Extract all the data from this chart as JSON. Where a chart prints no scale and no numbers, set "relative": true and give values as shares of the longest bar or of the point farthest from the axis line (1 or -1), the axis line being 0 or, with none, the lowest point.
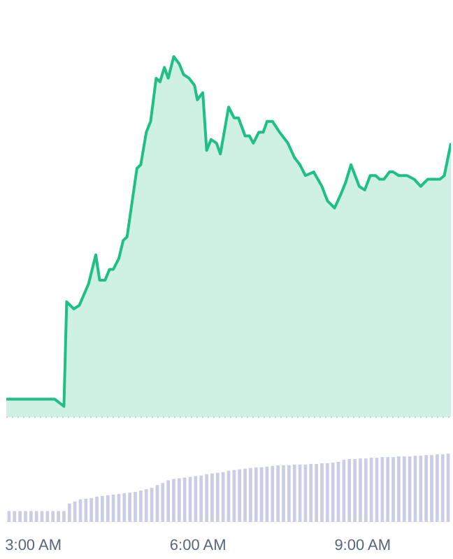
{
  "chart_data": [
    {
      "type": "area",
      "relative": true,
      "color": "#1fbf85",
      "xlim": [
        2.5,
        10.6
      ],
      "x": [
        2.5,
        2.75,
        2.95,
        3.13,
        3.3,
        3.38,
        3.55,
        3.6,
        3.73,
        3.83,
        4.0,
        4.13,
        4.2,
        4.3,
        4.38,
        4.45,
        4.55,
        4.63,
        4.7,
        4.88,
        4.95,
        5.05,
        5.13,
        5.23,
        5.3,
        5.38,
        5.45,
        5.55,
        5.65,
        5.73,
        5.83,
        5.93,
        5.98,
        6.08,
        6.15,
        6.23,
        6.33,
        6.4,
        6.55,
        6.65,
        6.73,
        6.85,
        6.93,
        7.0,
        7.1,
        7.18,
        7.25,
        7.35,
        7.48,
        7.63,
        7.75,
        7.85,
        7.95,
        8.1,
        8.25,
        8.35,
        8.48,
        8.6,
        8.68,
        8.78,
        8.93,
        9.03,
        9.13,
        9.23,
        9.3,
        9.38,
        9.48,
        9.55,
        9.65,
        9.8,
        9.93,
        10.05,
        10.18,
        10.3,
        10.4,
        10.48,
        10.6
      ],
      "values": [
        0.05,
        0.05,
        0.05,
        0.05,
        0.05,
        0.05,
        0.03,
        0.32,
        0.3,
        0.31,
        0.37,
        0.45,
        0.38,
        0.38,
        0.41,
        0.41,
        0.44,
        0.49,
        0.5,
        0.69,
        0.7,
        0.79,
        0.82,
        0.94,
        0.93,
        0.97,
        0.94,
        1.0,
        0.98,
        0.95,
        0.94,
        0.92,
        0.88,
        0.9,
        0.74,
        0.77,
        0.76,
        0.73,
        0.86,
        0.83,
        0.83,
        0.78,
        0.78,
        0.76,
        0.79,
        0.79,
        0.82,
        0.82,
        0.79,
        0.76,
        0.72,
        0.7,
        0.67,
        0.68,
        0.64,
        0.6,
        0.58,
        0.62,
        0.65,
        0.7,
        0.64,
        0.63,
        0.67,
        0.67,
        0.66,
        0.66,
        0.68,
        0.68,
        0.67,
        0.67,
        0.66,
        0.64,
        0.66,
        0.66,
        0.66,
        0.67,
        0.76
      ]
    },
    {
      "type": "bar",
      "relative": true,
      "color": "#c9cde6",
      "xlim": [
        2.5,
        10.6
      ],
      "xticks": [
        {
          "value": 3,
          "label": "3:00 AM"
        },
        {
          "value": 6,
          "label": "6:00 AM"
        },
        {
          "value": 9,
          "label": "9:00 AM"
        }
      ],
      "x": [
        2.55,
        2.65,
        2.75,
        2.85,
        2.95,
        3.05,
        3.15,
        3.25,
        3.35,
        3.45,
        3.55,
        3.65,
        3.75,
        3.85,
        3.95,
        4.05,
        4.15,
        4.25,
        4.35,
        4.45,
        4.55,
        4.65,
        4.75,
        4.85,
        4.95,
        5.05,
        5.15,
        5.25,
        5.35,
        5.45,
        5.55,
        5.65,
        5.75,
        5.85,
        5.95,
        6.05,
        6.15,
        6.25,
        6.35,
        6.45,
        6.55,
        6.65,
        6.75,
        6.85,
        6.95,
        7.05,
        7.15,
        7.25,
        7.35,
        7.45,
        7.55,
        7.65,
        7.75,
        7.85,
        7.95,
        8.05,
        8.15,
        8.25,
        8.35,
        8.45,
        8.55,
        8.65,
        8.75,
        8.85,
        8.95,
        9.05,
        9.15,
        9.25,
        9.35,
        9.45,
        9.55,
        9.65,
        9.75,
        9.85,
        9.95,
        10.05,
        10.15,
        10.25,
        10.35,
        10.45,
        10.55
      ],
      "values": [
        0.16,
        0.16,
        0.16,
        0.16,
        0.16,
        0.16,
        0.16,
        0.16,
        0.16,
        0.16,
        0.16,
        0.27,
        0.3,
        0.33,
        0.34,
        0.35,
        0.37,
        0.38,
        0.39,
        0.4,
        0.41,
        0.42,
        0.43,
        0.44,
        0.46,
        0.48,
        0.5,
        0.54,
        0.57,
        0.61,
        0.63,
        0.64,
        0.65,
        0.66,
        0.67,
        0.68,
        0.7,
        0.71,
        0.72,
        0.73,
        0.75,
        0.76,
        0.77,
        0.78,
        0.79,
        0.8,
        0.8,
        0.81,
        0.82,
        0.83,
        0.83,
        0.83,
        0.84,
        0.84,
        0.84,
        0.85,
        0.85,
        0.86,
        0.86,
        0.87,
        0.88,
        0.91,
        0.92,
        0.92,
        0.93,
        0.93,
        0.94,
        0.94,
        0.95,
        0.95,
        0.95,
        0.96,
        0.96,
        0.96,
        0.97,
        0.97,
        0.98,
        0.98,
        0.99,
        0.99,
        1.0
      ]
    }
  ]
}
